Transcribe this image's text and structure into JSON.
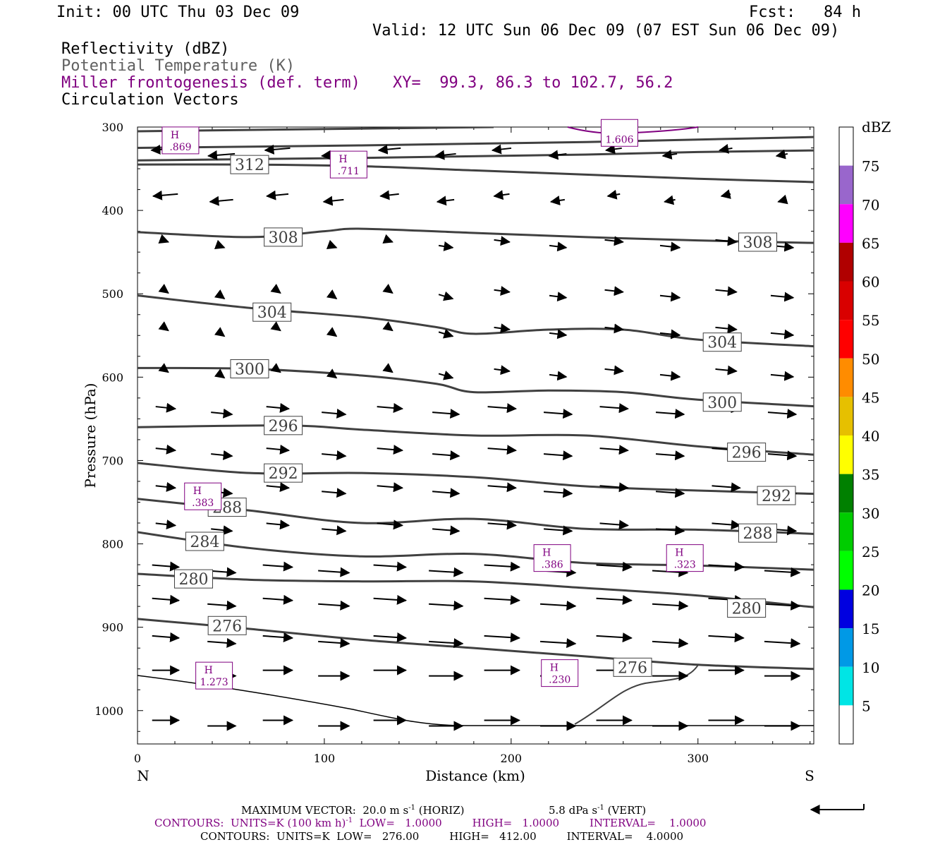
{
  "header": {
    "init": "Init: 00 UTC Thu 03 Dec 09",
    "fcst": "Fcst:   84 h",
    "valid": "Valid: 12 UTC Sun 06 Dec 09 (07 EST Sun 06 Dec 09)",
    "field1": "Reflectivity (dBZ)",
    "field2": "Potential Temperature (K)",
    "field3": "Miller frontogenesis (def. term)",
    "xy": "XY=  99.3, 86.3 to 102.7, 56.2",
    "field4": "Circulation Vectors"
  },
  "footer": {
    "max_vector": "MAXIMUM VECTOR:  20.0 m s",
    "max_vector_sup": "-1",
    "max_vector_h": " (HORIZ)",
    "max_vector_v": "5.8 dPa s",
    "max_vector_v_sup": "-1",
    "max_vector_v2": " (VERT)",
    "contours1": "CONTOURS:  UNITS=K (100 km h)",
    "contours1_sup": "-1",
    "contours1_rest": "  LOW=   1.0000         HIGH=   1.0000         INTERVAL=    1.0000",
    "contours2": "CONTOURS:  UNITS=K  LOW=   276.00         HIGH=   412.00         INTERVAL=    4.0000"
  },
  "colors": {
    "contour": "#404040",
    "frontogenesis": "#800080",
    "vector": "#000000"
  },
  "colorbar": {
    "title": "dBZ",
    "labels": [
      "5",
      "10",
      "15",
      "20",
      "25",
      "30",
      "35",
      "40",
      "45",
      "50",
      "55",
      "60",
      "65",
      "70",
      "75"
    ],
    "colors": [
      "#ffffff",
      "#00e5e5",
      "#0099e6",
      "#0000e0",
      "#00ff00",
      "#00cc00",
      "#008000",
      "#ffff00",
      "#e6c000",
      "#ff8c00",
      "#ff0000",
      "#d90000",
      "#b00000",
      "#ff00ff",
      "#9966cc",
      "#ffffff"
    ]
  },
  "chart_data": {
    "type": "line",
    "title": "",
    "xlabel": "Distance (km)",
    "ylabel": "Pressure (hPa)",
    "xlim": [
      0,
      362
    ],
    "ylim": [
      1040,
      300
    ],
    "x_ticks": [
      "0",
      "100",
      "200",
      "300"
    ],
    "y_ticks": [
      "300",
      "400",
      "500",
      "600",
      "700",
      "800",
      "900",
      "1000"
    ],
    "x_end_labels": {
      "left": "N",
      "right": "S"
    },
    "isentropes": [
      {
        "theta": "312",
        "x": [
          0,
          60,
          120,
          180,
          240,
          300,
          362
        ],
        "p": [
          345,
          345,
          347,
          352,
          357,
          362,
          366
        ]
      },
      {
        "theta": "308",
        "x": [
          0,
          60,
          100,
          120,
          180,
          240,
          300,
          362
        ],
        "p": [
          426,
          432,
          425,
          422,
          427,
          432,
          436,
          439
        ]
      },
      {
        "theta": "304",
        "x": [
          0,
          60,
          120,
          160,
          180,
          220,
          260,
          300,
          362
        ],
        "p": [
          502,
          517,
          528,
          540,
          548,
          543,
          543,
          555,
          563
        ]
      },
      {
        "theta": "300",
        "x": [
          0,
          60,
          120,
          160,
          180,
          220,
          260,
          300,
          362
        ],
        "p": [
          589,
          590,
          598,
          608,
          618,
          616,
          618,
          627,
          635
        ]
      },
      {
        "theta": "296",
        "x": [
          0,
          80,
          120,
          180,
          240,
          300,
          362
        ],
        "p": [
          660,
          658,
          663,
          670,
          670,
          683,
          693
        ]
      },
      {
        "theta": "292",
        "x": [
          0,
          60,
          120,
          180,
          240,
          300,
          362
        ],
        "p": [
          703,
          715,
          715,
          720,
          731,
          736,
          740
        ]
      },
      {
        "theta": "288",
        "x": [
          0,
          60,
          120,
          180,
          240,
          300,
          362
        ],
        "p": [
          746,
          760,
          775,
          770,
          782,
          783,
          788
        ]
      },
      {
        "theta": "284",
        "x": [
          0,
          60,
          120,
          180,
          240,
          300,
          362
        ],
        "p": [
          786,
          805,
          815,
          812,
          823,
          826,
          831
        ]
      },
      {
        "theta": "280",
        "x": [
          0,
          60,
          120,
          180,
          240,
          300,
          362
        ],
        "p": [
          836,
          843,
          845,
          845,
          853,
          862,
          876
        ]
      },
      {
        "theta": "276",
        "x": [
          0,
          60,
          120,
          180,
          240,
          300,
          362
        ],
        "p": [
          890,
          902,
          915,
          925,
          935,
          945,
          950
        ]
      }
    ],
    "contour_labels": [
      {
        "text": "312",
        "x": 60,
        "p": 345
      },
      {
        "text": "308",
        "x": 78,
        "p": 432
      },
      {
        "text": "308",
        "x": 332,
        "p": 438
      },
      {
        "text": "304",
        "x": 72,
        "p": 522
      },
      {
        "text": "304",
        "x": 313,
        "p": 558
      },
      {
        "text": "300",
        "x": 60,
        "p": 590
      },
      {
        "text": "300",
        "x": 313,
        "p": 630
      },
      {
        "text": "296",
        "x": 78,
        "p": 658
      },
      {
        "text": "296",
        "x": 326,
        "p": 690
      },
      {
        "text": "292",
        "x": 78,
        "p": 715
      },
      {
        "text": "292",
        "x": 342,
        "p": 742
      },
      {
        "text": "288",
        "x": 48,
        "p": 756
      },
      {
        "text": "288",
        "x": 332,
        "p": 787
      },
      {
        "text": "284",
        "x": 36,
        "p": 797
      },
      {
        "text": "280",
        "x": 30,
        "p": 842
      },
      {
        "text": "280",
        "x": 326,
        "p": 877
      },
      {
        "text": "276",
        "x": 48,
        "p": 898
      },
      {
        "text": "276",
        "x": 265,
        "p": 948
      }
    ],
    "frontogenesis_maxima": [
      {
        "label": "H",
        "value": ".869",
        "x": 23,
        "p": 316
      },
      {
        "label": "H",
        "value": ".711",
        "x": 113,
        "p": 345
      },
      {
        "label": "",
        "value": "1.606",
        "x": 258,
        "p": 307
      },
      {
        "label": "H",
        "value": ".383",
        "x": 35,
        "p": 743
      },
      {
        "label": "H",
        "value": ".386",
        "x": 222,
        "p": 817
      },
      {
        "label": "H",
        "value": ".323",
        "x": 293,
        "p": 817
      },
      {
        "label": "H",
        "value": ".230",
        "x": 226,
        "p": 955
      },
      {
        "label": "H",
        "value": "1.273",
        "x": 41,
        "p": 958
      }
    ]
  }
}
